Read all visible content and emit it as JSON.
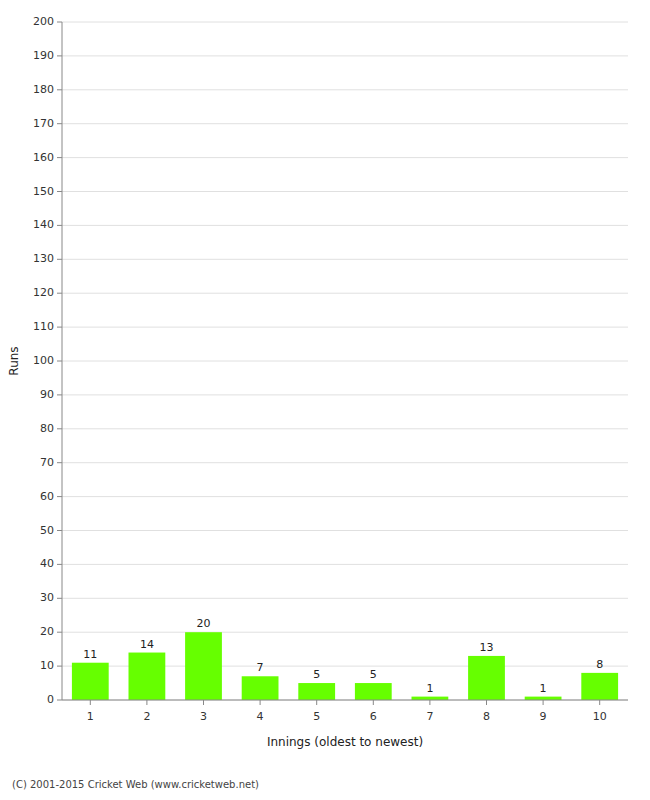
{
  "chart_data": {
    "type": "bar",
    "categories": [
      "1",
      "2",
      "3",
      "4",
      "5",
      "6",
      "7",
      "8",
      "9",
      "10"
    ],
    "values": [
      11,
      14,
      20,
      7,
      5,
      5,
      1,
      13,
      1,
      8
    ],
    "color": "#66ff00",
    "xlabel": "Innings (oldest to newest)",
    "ylabel": "Runs",
    "ylim": [
      0,
      200
    ],
    "yticks": [
      0,
      10,
      20,
      30,
      40,
      50,
      60,
      70,
      80,
      90,
      100,
      110,
      120,
      130,
      140,
      150,
      160,
      170,
      180,
      190,
      200
    ],
    "grid": true,
    "data_labels": true,
    "annotations": [
      "(C) 2001-2015 Cricket Web (www.cricketweb.net)"
    ]
  }
}
